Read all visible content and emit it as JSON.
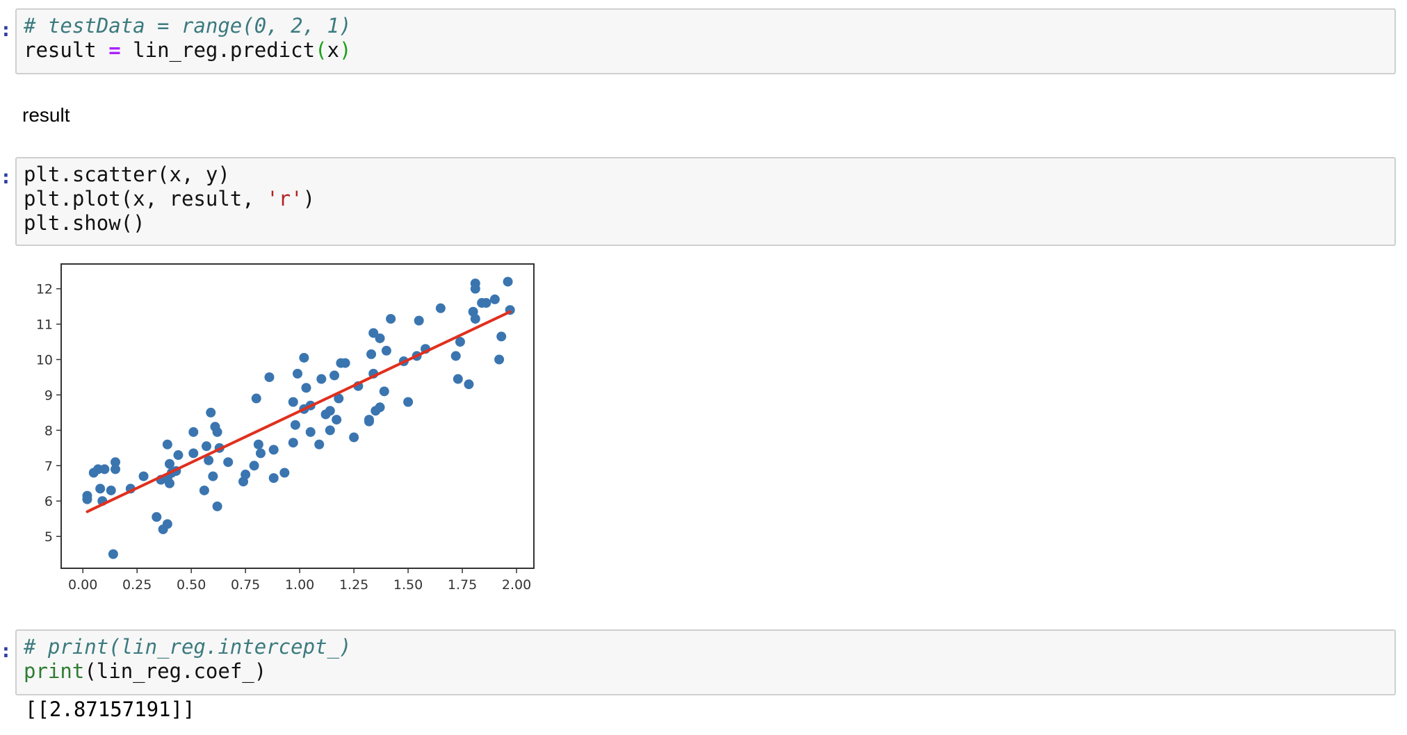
{
  "cells": {
    "cell1": {
      "comment": "# testData = range(0, 2, 1)",
      "line2_var": "result",
      "line2_op": "=",
      "line2_call": "lin_reg.predict",
      "line2_open": "(",
      "line2_arg": "x",
      "line2_close": ")"
    },
    "markdown": "result",
    "cell2": {
      "line1": "plt.scatter(x, y)",
      "line2_pre": "plt.plot(x, result, ",
      "line2_str": "'r'",
      "line2_post": ")",
      "line3": "plt.show()"
    },
    "cell3": {
      "comment": "# print(lin_reg.intercept_)",
      "line2_fn": "print",
      "line2_rest": "(lin_reg.coef_)"
    },
    "output": "[[2.87157191]]"
  },
  "colors": {
    "scatter": "#3a75b0",
    "line": "#e0301e"
  },
  "chart_data": {
    "type": "scatter",
    "xlim": [
      -0.1,
      2.08
    ],
    "ylim": [
      4.1,
      12.7
    ],
    "xticks": [
      "0.00",
      "0.25",
      "0.50",
      "0.75",
      "1.00",
      "1.25",
      "1.50",
      "1.75",
      "2.00"
    ],
    "yticks": [
      "5",
      "6",
      "7",
      "8",
      "9",
      "10",
      "11",
      "12"
    ],
    "grid": false,
    "series": [
      {
        "type": "scatter",
        "points": [
          [
            0.02,
            6.15
          ],
          [
            0.02,
            6.05
          ],
          [
            0.05,
            6.8
          ],
          [
            0.07,
            6.9
          ],
          [
            0.08,
            6.35
          ],
          [
            0.09,
            6.0
          ],
          [
            0.1,
            6.9
          ],
          [
            0.13,
            6.3
          ],
          [
            0.14,
            4.5
          ],
          [
            0.15,
            7.1
          ],
          [
            0.15,
            6.9
          ],
          [
            0.22,
            6.35
          ],
          [
            0.28,
            6.7
          ],
          [
            0.34,
            5.55
          ],
          [
            0.36,
            6.6
          ],
          [
            0.37,
            5.2
          ],
          [
            0.39,
            5.35
          ],
          [
            0.39,
            6.65
          ],
          [
            0.39,
            7.6
          ],
          [
            0.4,
            7.05
          ],
          [
            0.4,
            6.5
          ],
          [
            0.41,
            6.8
          ],
          [
            0.43,
            6.85
          ],
          [
            0.44,
            7.3
          ],
          [
            0.51,
            7.35
          ],
          [
            0.51,
            7.95
          ],
          [
            0.56,
            6.3
          ],
          [
            0.57,
            7.55
          ],
          [
            0.58,
            7.15
          ],
          [
            0.59,
            8.5
          ],
          [
            0.6,
            6.7
          ],
          [
            0.61,
            8.1
          ],
          [
            0.62,
            7.95
          ],
          [
            0.62,
            5.85
          ],
          [
            0.63,
            7.5
          ],
          [
            0.67,
            7.1
          ],
          [
            0.74,
            6.55
          ],
          [
            0.75,
            6.75
          ],
          [
            0.79,
            7.0
          ],
          [
            0.8,
            8.9
          ],
          [
            0.81,
            7.6
          ],
          [
            0.82,
            7.35
          ],
          [
            0.86,
            9.5
          ],
          [
            0.88,
            6.65
          ],
          [
            0.88,
            7.45
          ],
          [
            0.93,
            6.8
          ],
          [
            0.97,
            8.8
          ],
          [
            0.97,
            7.65
          ],
          [
            0.98,
            8.15
          ],
          [
            0.99,
            9.6
          ],
          [
            1.02,
            8.6
          ],
          [
            1.02,
            10.05
          ],
          [
            1.03,
            9.2
          ],
          [
            1.05,
            7.95
          ],
          [
            1.05,
            8.7
          ],
          [
            1.09,
            7.6
          ],
          [
            1.1,
            9.45
          ],
          [
            1.12,
            8.45
          ],
          [
            1.14,
            8.55
          ],
          [
            1.14,
            8.0
          ],
          [
            1.16,
            9.55
          ],
          [
            1.17,
            8.3
          ],
          [
            1.18,
            8.9
          ],
          [
            1.19,
            9.9
          ],
          [
            1.21,
            9.9
          ],
          [
            1.25,
            7.8
          ],
          [
            1.27,
            9.25
          ],
          [
            1.32,
            8.25
          ],
          [
            1.32,
            8.3
          ],
          [
            1.33,
            10.15
          ],
          [
            1.34,
            9.6
          ],
          [
            1.34,
            10.75
          ],
          [
            1.35,
            8.55
          ],
          [
            1.37,
            10.6
          ],
          [
            1.37,
            8.65
          ],
          [
            1.39,
            9.1
          ],
          [
            1.4,
            10.25
          ],
          [
            1.42,
            11.15
          ],
          [
            1.48,
            9.95
          ],
          [
            1.5,
            8.8
          ],
          [
            1.54,
            10.1
          ],
          [
            1.55,
            11.1
          ],
          [
            1.58,
            10.3
          ],
          [
            1.65,
            11.45
          ],
          [
            1.72,
            10.1
          ],
          [
            1.73,
            9.45
          ],
          [
            1.74,
            10.5
          ],
          [
            1.78,
            9.3
          ],
          [
            1.8,
            11.35
          ],
          [
            1.81,
            12.15
          ],
          [
            1.81,
            12.0
          ],
          [
            1.81,
            11.15
          ],
          [
            1.84,
            11.6
          ],
          [
            1.86,
            11.6
          ],
          [
            1.9,
            11.7
          ],
          [
            1.92,
            10.0
          ],
          [
            1.93,
            10.65
          ],
          [
            1.96,
            12.2
          ],
          [
            1.97,
            11.4
          ]
        ]
      },
      {
        "type": "line",
        "points": [
          [
            0.02,
            5.7
          ],
          [
            1.97,
            11.35
          ]
        ]
      }
    ]
  }
}
